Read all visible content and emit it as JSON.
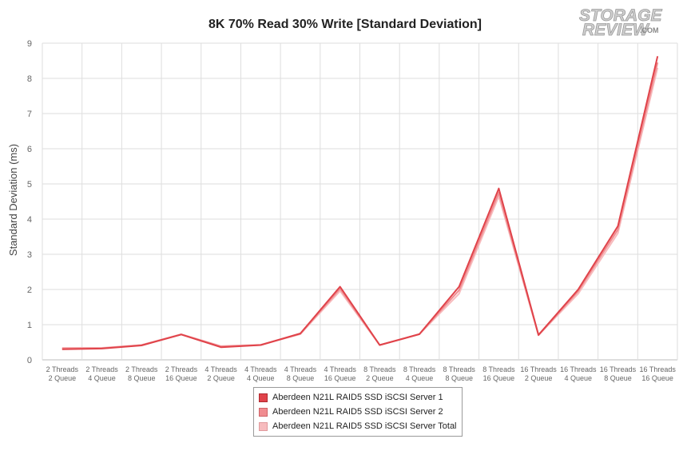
{
  "logo": {
    "line1": "STORAGE",
    "line2": "REVIEW",
    "suffix": ".COM"
  },
  "chart_data": {
    "type": "line",
    "title": "8K 70% Read 30% Write [Standard Deviation]",
    "ylabel": "Standard Deviation (ms)",
    "xlabel": "",
    "ylim": [
      0,
      9
    ],
    "yticks": [
      0,
      1,
      2,
      3,
      4,
      5,
      6,
      7,
      8,
      9
    ],
    "grid": true,
    "legend_position": "bottom-center",
    "categories": [
      [
        "2 Threads",
        "2 Queue"
      ],
      [
        "2 Threads",
        "4 Queue"
      ],
      [
        "2 Threads",
        "8 Queue"
      ],
      [
        "2 Threads",
        "16 Queue"
      ],
      [
        "4 Threads",
        "2 Queue"
      ],
      [
        "4 Threads",
        "4 Queue"
      ],
      [
        "4 Threads",
        "8 Queue"
      ],
      [
        "4 Threads",
        "16 Queue"
      ],
      [
        "8 Threads",
        "2 Queue"
      ],
      [
        "8 Threads",
        "4 Queue"
      ],
      [
        "8 Threads",
        "8 Queue"
      ],
      [
        "8 Threads",
        "16 Queue"
      ],
      [
        "16 Threads",
        "2 Queue"
      ],
      [
        "16 Threads",
        "4 Queue"
      ],
      [
        "16 Threads",
        "8 Queue"
      ],
      [
        "16 Threads",
        "16 Queue"
      ]
    ],
    "series": [
      {
        "name": "Aberdeen N21L RAID5 SSD iSCSI Server 1",
        "color": "#e0434a",
        "values": [
          0.3,
          0.32,
          0.41,
          0.72,
          0.36,
          0.42,
          0.75,
          2.08,
          0.42,
          0.73,
          2.08,
          4.87,
          0.71,
          2.0,
          3.8,
          8.63
        ]
      },
      {
        "name": "Aberdeen N21L RAID5 SSD iSCSI Server 2",
        "color": "#f08c90",
        "values": [
          0.32,
          0.33,
          0.42,
          0.72,
          0.38,
          0.42,
          0.74,
          2.02,
          0.42,
          0.73,
          1.98,
          4.75,
          0.7,
          1.95,
          3.7,
          8.45
        ]
      },
      {
        "name": "Aberdeen N21L RAID5 SSD iSCSI Server Total",
        "color": "#f7bcbe",
        "values": [
          0.34,
          0.34,
          0.42,
          0.73,
          0.39,
          0.43,
          0.73,
          1.96,
          0.42,
          0.73,
          1.88,
          4.65,
          0.7,
          1.88,
          3.6,
          8.3
        ]
      }
    ]
  }
}
